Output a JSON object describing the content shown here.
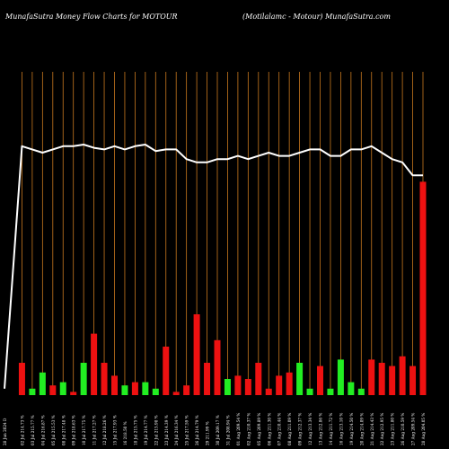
{
  "header": {
    "left": "MunafaSutra  Money Flow  Charts for MOTOUR",
    "right": "(Motilalamc -   Motour) MunafaSutra.com"
  },
  "colors": {
    "background": "#000000",
    "grid": "#c8781e",
    "up": "#22ee22",
    "down": "#ee1111",
    "line": "#ffffff",
    "label": "#ffffff"
  },
  "chart_data": {
    "type": "bar",
    "title": "",
    "xlabel": "",
    "ylabel": "",
    "grid": true,
    "legend": "none",
    "line_ylim": [
      0,
      100
    ],
    "bar_ylim": [
      0,
      100
    ],
    "dates": [
      "02 Jul 2024",
      "03 Jul 2024",
      "04 Jul 2024",
      "05 Jul 2024",
      "08 Jul 2024",
      "09 Jul 2024",
      "10 Jul 2024",
      "11 Jul 2024",
      "12 Jul 2024",
      "15 Jul 2024",
      "16 Jul 2024",
      "18 Jul 2024",
      "19 Jul 2024",
      "22 Jul 2024",
      "23 Jul 2024",
      "24 Jul 2024",
      "25 Jul 2024",
      "26 Jul 2024",
      "29 Jul 2024",
      "30 Jul 2024",
      "31 Jul 2024",
      "01 Aug 2024",
      "02 Aug 2024",
      "05 Aug 2024",
      "06 Aug 2024",
      "07 Aug 2024",
      "08 Aug 2024",
      "09 Aug 2024",
      "12 Aug 2024",
      "13 Aug 2024",
      "14 Aug 2024",
      "16 Aug 2024",
      "19 Aug 2024",
      "20 Aug 2024",
      "21 Aug 2024",
      "22 Aug 2024",
      "23 Aug 2024",
      "26 Aug 2024",
      "27 Aug 2024",
      "28 Aug 2024"
    ],
    "x_tick_labels": [
      "28 Jun 2024 D",
      "02 Jul 214.73 %",
      "03 Jul 215.77 %",
      "04 Jul 216.87 %",
      "05 Jul 215.53 %",
      "08 Jul 217.48 %",
      "09 Jul 218.63 %",
      "10 Jul 217.75 %",
      "11 Jul 217.27 %",
      "12 Jul 218.26 %",
      "15 Jul 217.93 %",
      "16 218.50 %",
      "18 Jul 215.75 %",
      "19 Jul 214.77 %",
      "22 Jul 215.98 %",
      "23 Jul 214.39 %",
      "24 Jul 216.34 %",
      "25 Jul 217.59 %",
      "26 Jul 214.79 %",
      "29 211.99 %",
      "30 Jul 209.17 %",
      "31 Jul 208.94 %",
      "01 Aug 209.54 %",
      "02 Aug 210.37 %",
      "05 Aug 209.89 %",
      "06 Aug 211.30 %",
      "07 Aug 210.44 %",
      "08 Aug 211.09 %",
      "09 Aug 212.37 %",
      "12 Aug 213.34 %",
      "13 Aug 212.86 %",
      "14 Aug 211.72 %",
      "16 Aug 213.10 %",
      "19 Aug 214.50 %",
      "20 Aug 214.09 %",
      "21 Aug 214.43 %",
      "22 Aug 212.95 %",
      "23 Aug 211.80 %",
      "26 Aug 210.59 %",
      "27 Aug 209.54 %",
      "28 Aug 204.05 %"
    ],
    "line_values": [
      2,
      77,
      76,
      75,
      76,
      77,
      77,
      77.5,
      76.5,
      76,
      77,
      76,
      77,
      77.5,
      75.5,
      76,
      76,
      73,
      72,
      72,
      73,
      73,
      74,
      73,
      74,
      75,
      74,
      74,
      75,
      76,
      76,
      74,
      74,
      76,
      76,
      77,
      75,
      73,
      72,
      68
    ],
    "bar_values": [
      10,
      2,
      7,
      3,
      4,
      1,
      10,
      19,
      10,
      6,
      3,
      4,
      4,
      2,
      15,
      1,
      3,
      25,
      10,
      17,
      5,
      6,
      5,
      10,
      2,
      6,
      7,
      10,
      2,
      9,
      2,
      11,
      4,
      2,
      11,
      10,
      9,
      12,
      9,
      66
    ],
    "bar_direction": [
      "down",
      "up",
      "up",
      "down",
      "up",
      "down",
      "up",
      "down",
      "down",
      "down",
      "up",
      "down",
      "up",
      "up",
      "down",
      "down",
      "down",
      "down",
      "down",
      "down",
      "up",
      "down",
      "down",
      "down",
      "down",
      "down",
      "down",
      "up",
      "up",
      "down",
      "up",
      "up",
      "up",
      "up",
      "down",
      "down",
      "down",
      "down",
      "down",
      "down"
    ]
  }
}
